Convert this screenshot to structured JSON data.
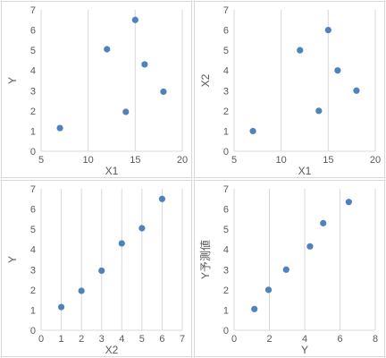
{
  "colors": {
    "marker": "#4F81BD",
    "grid": "#d9d9d9",
    "text": "#595959",
    "border": "#d9d9d9"
  },
  "chart_data": [
    {
      "type": "scatter",
      "xlabel": "X1",
      "ylabel": "Y",
      "xlim": [
        5,
        20
      ],
      "ylim": [
        0,
        7
      ],
      "xticks": [
        5,
        10,
        15,
        20
      ],
      "yticks": [
        0,
        1,
        2,
        3,
        4,
        5,
        6,
        7
      ],
      "x": [
        7,
        12,
        14,
        15,
        16,
        18
      ],
      "y": [
        1.15,
        5.05,
        1.95,
        6.5,
        4.3,
        2.95
      ],
      "grid": "vertical",
      "legend": "none"
    },
    {
      "type": "scatter",
      "xlabel": "X1",
      "ylabel": "X2",
      "xlim": [
        5,
        20
      ],
      "ylim": [
        0,
        7
      ],
      "xticks": [
        5,
        10,
        15,
        20
      ],
      "yticks": [
        0,
        1,
        2,
        3,
        4,
        5,
        6,
        7
      ],
      "x": [
        7,
        12,
        14,
        15,
        16,
        18
      ],
      "y": [
        1,
        5,
        2,
        6,
        4,
        3
      ],
      "grid": "vertical",
      "legend": "none"
    },
    {
      "type": "scatter",
      "xlabel": "X2",
      "ylabel": "Y",
      "xlim": [
        0,
        7
      ],
      "ylim": [
        0,
        7
      ],
      "xticks": [
        0,
        1,
        2,
        3,
        4,
        5,
        6,
        7
      ],
      "yticks": [
        0,
        1,
        2,
        3,
        4,
        5,
        6,
        7
      ],
      "x": [
        1,
        2,
        3,
        4,
        5,
        6
      ],
      "y": [
        1.15,
        1.95,
        2.95,
        4.3,
        5.05,
        6.5
      ],
      "grid": "vertical",
      "legend": "none"
    },
    {
      "type": "scatter",
      "xlabel": "Y",
      "ylabel": "Y予測値",
      "xlim": [
        0,
        8
      ],
      "ylim": [
        0,
        7
      ],
      "xticks": [
        0,
        2,
        4,
        6,
        8
      ],
      "yticks": [
        0,
        1,
        2,
        3,
        4,
        5,
        6,
        7
      ],
      "x": [
        1.15,
        1.95,
        2.95,
        4.3,
        5.05,
        6.5
      ],
      "y": [
        1.05,
        2.0,
        3.0,
        4.15,
        5.3,
        6.35
      ],
      "grid": "vertical",
      "legend": "none"
    }
  ]
}
